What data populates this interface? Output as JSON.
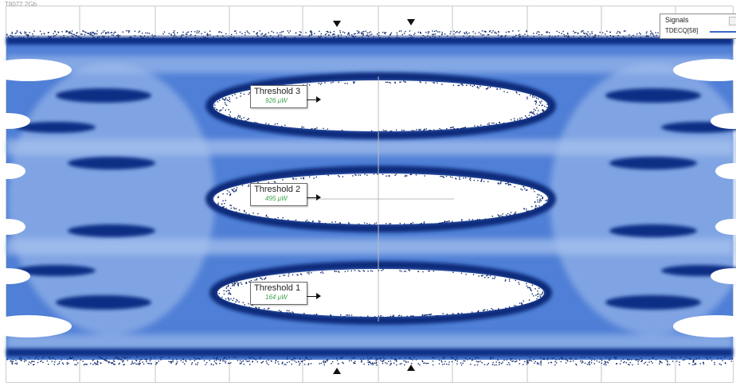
{
  "header": {
    "top_label": "T8072 2Gb"
  },
  "legend": {
    "title": "Signals",
    "series_name": "TDECQ[58]"
  },
  "thresholds": [
    {
      "label": "Threshold 3",
      "value": "926 µW"
    },
    {
      "label": "Threshold 2",
      "value": "495 µW"
    },
    {
      "label": "Threshold 1",
      "value": "164 µW"
    }
  ],
  "colors": {
    "trace": "#2f5fc8",
    "trace_dark": "#0c2f82",
    "eye_inside": "#ffffff",
    "grid": "#b9b9b9",
    "threshold_value": "#3aa54a"
  },
  "icons": {
    "markers": "triangle",
    "threshold_pointer": "arrow-right"
  }
}
